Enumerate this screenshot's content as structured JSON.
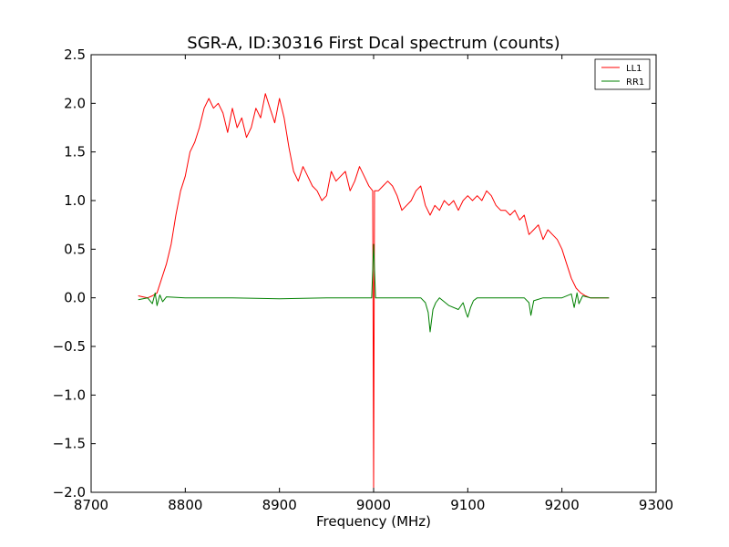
{
  "chart_data": {
    "type": "line",
    "title": "SGR-A, ID:30316 First Dcal spectrum (counts)",
    "xlabel": "Frequency (MHz)",
    "ylabel": "",
    "xlim": [
      8700,
      9300
    ],
    "ylim": [
      -2.0,
      2.5
    ],
    "xticks": [
      8700,
      8800,
      8900,
      9000,
      9100,
      9200,
      9300
    ],
    "xtick_labels": [
      "8700",
      "8800",
      "8900",
      "9000",
      "9100",
      "9200",
      "9300"
    ],
    "yticks": [
      2.5,
      2.0,
      1.5,
      1.0,
      0.5,
      0.0,
      -0.5,
      -1.0,
      -1.5,
      -2.0
    ],
    "ytick_labels": [
      "2.5",
      "2.0",
      "1.5",
      "1.0",
      "0.5",
      "0.0",
      "−0.5",
      "−1.0",
      "−1.5",
      "−2.0"
    ],
    "grid": false,
    "legend_position": "top-right",
    "series": [
      {
        "name": "LL1",
        "color": "#ff0000",
        "x": [
          8750,
          8760,
          8765,
          8770,
          8775,
          8780,
          8785,
          8790,
          8795,
          8800,
          8805,
          8810,
          8815,
          8820,
          8825,
          8830,
          8835,
          8840,
          8845,
          8850,
          8855,
          8860,
          8865,
          8870,
          8875,
          8880,
          8885,
          8890,
          8895,
          8900,
          8905,
          8910,
          8915,
          8920,
          8925,
          8930,
          8935,
          8940,
          8945,
          8950,
          8955,
          8960,
          8965,
          8970,
          8975,
          8980,
          8985,
          8990,
          8995,
          8999,
          9000,
          9001,
          9005,
          9010,
          9015,
          9020,
          9025,
          9030,
          9035,
          9040,
          9045,
          9050,
          9055,
          9060,
          9065,
          9070,
          9075,
          9080,
          9085,
          9090,
          9095,
          9100,
          9105,
          9110,
          9115,
          9120,
          9125,
          9130,
          9135,
          9140,
          9145,
          9150,
          9155,
          9160,
          9165,
          9170,
          9175,
          9180,
          9185,
          9190,
          9195,
          9200,
          9205,
          9210,
          9215,
          9220,
          9225,
          9230,
          9240,
          9250
        ],
        "y": [
          0.02,
          0.0,
          0.02,
          0.05,
          0.2,
          0.35,
          0.55,
          0.85,
          1.1,
          1.25,
          1.5,
          1.6,
          1.75,
          1.95,
          2.05,
          1.95,
          2.0,
          1.9,
          1.7,
          1.95,
          1.75,
          1.85,
          1.65,
          1.75,
          1.95,
          1.85,
          2.1,
          1.95,
          1.8,
          2.05,
          1.85,
          1.55,
          1.3,
          1.2,
          1.35,
          1.25,
          1.15,
          1.1,
          1.0,
          1.05,
          1.3,
          1.2,
          1.25,
          1.3,
          1.1,
          1.2,
          1.35,
          1.25,
          1.15,
          1.1,
          -1.95,
          1.1,
          1.1,
          1.15,
          1.2,
          1.15,
          1.05,
          0.9,
          0.95,
          1.0,
          1.1,
          1.15,
          0.95,
          0.85,
          0.95,
          0.9,
          1.0,
          0.95,
          1.0,
          0.9,
          1.0,
          1.05,
          1.0,
          1.05,
          1.0,
          1.1,
          1.05,
          0.95,
          0.9,
          0.9,
          0.85,
          0.9,
          0.8,
          0.85,
          0.65,
          0.7,
          0.75,
          0.6,
          0.7,
          0.65,
          0.6,
          0.5,
          0.35,
          0.2,
          0.1,
          0.05,
          0.02,
          0.0,
          0.0,
          0.0
        ]
      },
      {
        "name": "RR1",
        "color": "#008000",
        "x": [
          8750,
          8760,
          8765,
          8768,
          8770,
          8773,
          8776,
          8780,
          8800,
          8850,
          8900,
          8950,
          8998,
          9000,
          9002,
          9050,
          9055,
          9058,
          9060,
          9063,
          9066,
          9070,
          9080,
          9090,
          9095,
          9098,
          9100,
          9103,
          9106,
          9110,
          9130,
          9160,
          9165,
          9167,
          9170,
          9180,
          9200,
          9210,
          9213,
          9216,
          9218,
          9222,
          9230,
          9240,
          9250
        ],
        "y": [
          -0.02,
          0.0,
          -0.06,
          0.05,
          -0.08,
          0.03,
          -0.04,
          0.01,
          0.0,
          0.0,
          -0.01,
          0.0,
          0.0,
          0.55,
          0.0,
          0.0,
          -0.05,
          -0.15,
          -0.35,
          -0.12,
          -0.05,
          0.0,
          -0.08,
          -0.12,
          -0.05,
          -0.15,
          -0.2,
          -0.1,
          -0.03,
          0.0,
          0.0,
          0.0,
          -0.05,
          -0.18,
          -0.03,
          0.0,
          0.0,
          0.04,
          -0.1,
          0.05,
          -0.06,
          0.02,
          0.0,
          0.0,
          0.0
        ]
      }
    ]
  }
}
